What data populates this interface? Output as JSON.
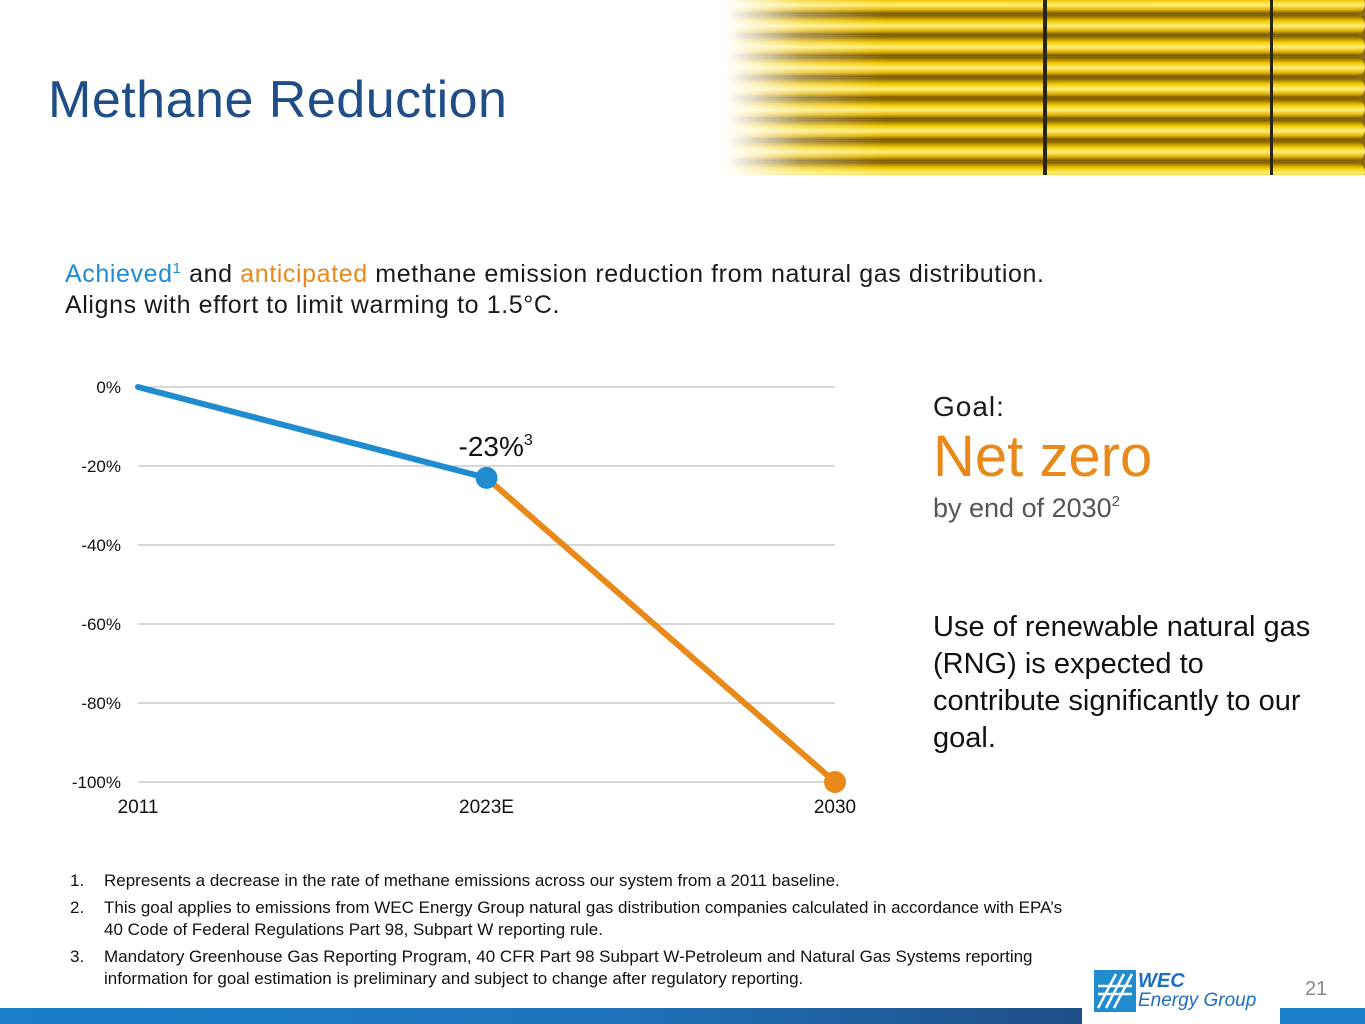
{
  "slide": {
    "title": "Methane Reduction",
    "page_number": "21"
  },
  "subtitle": {
    "achieved": "Achieved",
    "achieved_sup": "1",
    "and": " and ",
    "anticipated": "anticipated",
    "rest": " methane emission reduction from natural gas distribution.",
    "line2": "Aligns with effort to limit warming to 1.5°C."
  },
  "goal": {
    "label": "Goal:",
    "main": "Net zero",
    "by": "by end of 2030",
    "by_sup": "2",
    "rng": "Use of renewable natural gas (RNG) is expected to contribute significantly to our goal."
  },
  "footnotes": [
    {
      "num": "1.",
      "text": "Represents a decrease in the rate of methane emissions across our system from a 2011 baseline."
    },
    {
      "num": "2.",
      "text": "This goal applies to emissions from WEC Energy Group natural gas distribution companies calculated in accordance with EPA’s 40 Code of Federal Regulations Part 98, Subpart W reporting rule."
    },
    {
      "num": "3.",
      "text": "Mandatory Greenhouse Gas Reporting Program, 40 CFR Part 98 Subpart W-Petroleum and Natural Gas Systems reporting information for goal estimation is preliminary and subject to change after regulatory reporting."
    }
  ],
  "logo": {
    "line1": "WEC",
    "line2": "Energy Group"
  },
  "colors": {
    "title": "#1f4e87",
    "achieved": "#1f8cd0",
    "anticipated": "#e8891a",
    "grid": "#bfbfbf"
  },
  "chart_data": {
    "type": "line",
    "categories": [
      "2011",
      "2023E",
      "2030"
    ],
    "yticks": [
      "0%",
      "-20%",
      "-40%",
      "-60%",
      "-80%",
      "-100%"
    ],
    "ylim": [
      -100,
      0
    ],
    "grid": true,
    "series": [
      {
        "role": "achieved",
        "color": "#1f8cd0",
        "x": [
          "2011",
          "2023E"
        ],
        "values": [
          0,
          -23
        ]
      },
      {
        "role": "anticipated",
        "color": "#e8891a",
        "x": [
          "2023E",
          "2030"
        ],
        "values": [
          -23,
          -100
        ]
      }
    ],
    "annotation": {
      "text": "-23%",
      "sup": "3",
      "x": "2023E",
      "y": -23
    }
  }
}
